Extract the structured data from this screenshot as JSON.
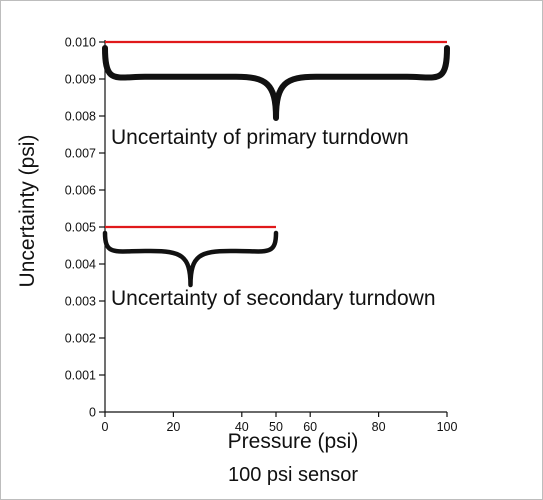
{
  "chart_data": {
    "type": "line",
    "title": "",
    "xlabel": "Pressure (psi)",
    "ylabel": "Uncertainty (psi)",
    "caption": "100 psi sensor",
    "xlim": [
      0,
      100
    ],
    "ylim": [
      0,
      0.01
    ],
    "x_ticks": [
      "0",
      "20",
      "40",
      "50",
      "60",
      "80",
      "100"
    ],
    "y_ticks": [
      "0",
      "0.001",
      "0.002",
      "0.003",
      "0.004",
      "0.005",
      "0.006",
      "0.007",
      "0.008",
      "0.009",
      "0.010"
    ],
    "grid": false,
    "series": [
      {
        "x": [
          0,
          100
        ],
        "y": [
          0.01,
          0.01
        ],
        "color": "#e0191b"
      },
      {
        "x": [
          0,
          50
        ],
        "y": [
          0.005,
          0.005
        ],
        "color": "#e0191b"
      }
    ],
    "braces": [
      {
        "x_from": 0,
        "x_to": 100,
        "y": 0.01
      },
      {
        "x_from": 0,
        "x_to": 50,
        "y": 0.005
      }
    ],
    "annotations": [
      {
        "text": "Uncertainty of primary turndown"
      },
      {
        "text": "Uncertainty of secondary turndown"
      }
    ]
  }
}
